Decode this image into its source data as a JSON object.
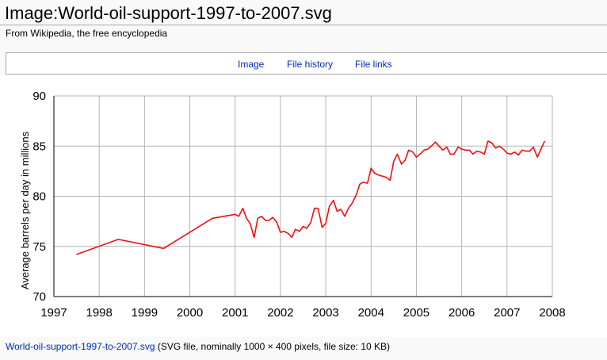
{
  "page": {
    "title": "Image:World-oil-support-1997-to-2007.svg",
    "subtitle": "From Wikipedia, the free encyclopedia"
  },
  "tabs": [
    "Image",
    "File history",
    "File links"
  ],
  "footer": {
    "file_link": "World-oil-support-1997-to-2007.svg",
    "description": " (SVG file, nominally 1000 × 400 pixels, file size: 10 KB)"
  },
  "colors": {
    "link": "#002bb8",
    "line": "#ee1111",
    "grid": "#b5b5b5"
  },
  "chart_data": {
    "type": "line",
    "title": "",
    "xlabel": "",
    "ylabel": "Average barrels per day in millions",
    "xlim": [
      1997,
      2008
    ],
    "ylim": [
      70,
      90
    ],
    "x_ticks": [
      "1997",
      "1998",
      "1999",
      "2000",
      "2001",
      "2002",
      "2003",
      "2004",
      "2005",
      "2006",
      "2007",
      "2008"
    ],
    "y_ticks": [
      "70",
      "75",
      "80",
      "85",
      "90"
    ],
    "grid": true,
    "series": [
      {
        "x": [
          1997.5,
          1998.42,
          1999.42,
          2000.5,
          2001.0,
          2001.08,
          2001.17,
          2001.25,
          2001.33,
          2001.42,
          2001.5,
          2001.58,
          2001.67,
          2001.75,
          2001.83,
          2001.92,
          2002.0,
          2002.08,
          2002.17,
          2002.25,
          2002.33,
          2002.42,
          2002.5,
          2002.58,
          2002.67,
          2002.75,
          2002.83,
          2002.92,
          2003.0,
          2003.08,
          2003.17,
          2003.25,
          2003.33,
          2003.42,
          2003.5,
          2003.58,
          2003.67,
          2003.75,
          2003.83,
          2003.92,
          2004.0,
          2004.08,
          2004.17,
          2004.25,
          2004.33,
          2004.42,
          2004.5,
          2004.58,
          2004.67,
          2004.75,
          2004.83,
          2004.92,
          2005.0,
          2005.08,
          2005.17,
          2005.25,
          2005.33,
          2005.42,
          2005.5,
          2005.58,
          2005.67,
          2005.75,
          2005.83,
          2005.92,
          2006.0,
          2006.08,
          2006.17,
          2006.25,
          2006.33,
          2006.42,
          2006.5,
          2006.58,
          2006.67,
          2006.75,
          2006.83,
          2006.92,
          2007.0,
          2007.08,
          2007.17,
          2007.25,
          2007.33,
          2007.42,
          2007.5,
          2007.58,
          2007.67,
          2007.75,
          2007.83
        ],
        "y": [
          74.2,
          75.7,
          74.8,
          77.8,
          78.2,
          78.0,
          78.8,
          77.8,
          77.3,
          75.9,
          77.8,
          78.0,
          77.6,
          77.6,
          77.9,
          77.4,
          76.4,
          76.5,
          76.3,
          75.9,
          76.7,
          76.5,
          77.0,
          76.8,
          77.4,
          78.8,
          78.8,
          76.9,
          77.3,
          79.0,
          79.6,
          78.5,
          78.7,
          78.0,
          78.8,
          79.3,
          80.1,
          81.2,
          81.4,
          81.3,
          82.8,
          82.3,
          82.1,
          82.0,
          81.9,
          81.6,
          83.5,
          84.2,
          83.2,
          83.6,
          84.6,
          84.4,
          83.9,
          84.2,
          84.6,
          84.7,
          85.0,
          85.4,
          85.0,
          84.6,
          84.9,
          84.2,
          84.2,
          84.9,
          84.7,
          84.6,
          84.6,
          84.2,
          84.5,
          84.4,
          84.2,
          85.5,
          85.3,
          84.8,
          85.0,
          84.7,
          84.3,
          84.2,
          84.4,
          84.1,
          84.6,
          84.5,
          84.5,
          84.9,
          83.9,
          84.7,
          85.5
        ]
      }
    ]
  }
}
